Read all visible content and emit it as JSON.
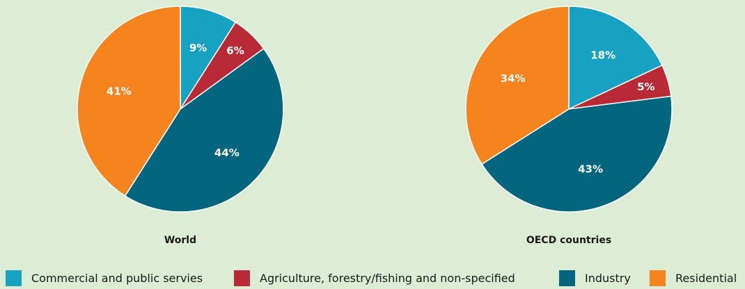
{
  "chart_data": [
    {
      "type": "pie",
      "title": "World",
      "slices": [
        {
          "category": "Commercial and public servies",
          "value": 9,
          "label": "9%"
        },
        {
          "category": "Agriculture, forestry/fishing and non-specified",
          "value": 6,
          "label": "6%"
        },
        {
          "category": "Industry",
          "value": 44,
          "label": "44%"
        },
        {
          "category": "Residential",
          "value": 41,
          "label": "41%"
        }
      ]
    },
    {
      "type": "pie",
      "title": "OECD countries",
      "slices": [
        {
          "category": "Commercial and public servies",
          "value": 18,
          "label": "18%"
        },
        {
          "category": "Agriculture, forestry/fishing and non-specified",
          "value": 5,
          "label": "5%"
        },
        {
          "category": "Industry",
          "value": 43,
          "label": "43%"
        },
        {
          "category": "Residential",
          "value": 34,
          "label": "34%"
        }
      ]
    }
  ],
  "legend": [
    {
      "label": "Commercial and public servies",
      "color": "#17a2c2"
    },
    {
      "label": "Agriculture, forestry/fishing and non-specified",
      "color": "#b82a35"
    },
    {
      "label": "Industry",
      "color": "#03657e"
    },
    {
      "label": "Residential",
      "color": "#f5841f"
    }
  ],
  "colors": {
    "background": "#ddecd5",
    "slice_border": "#ffffff"
  }
}
